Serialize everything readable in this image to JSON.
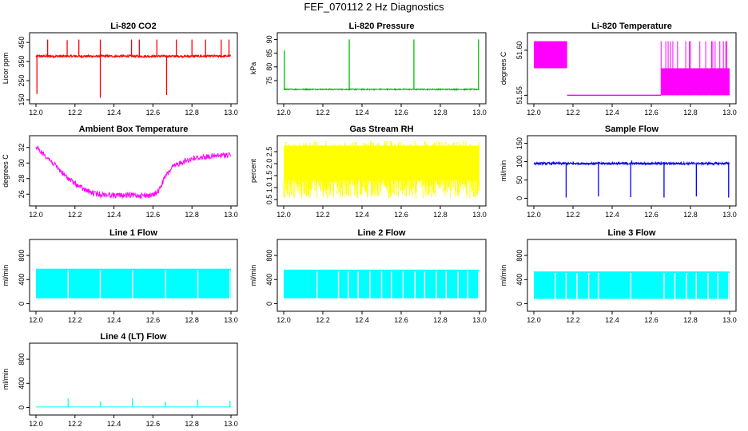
{
  "page": {
    "title": "FEF_070112  2 Hz Diagnostics"
  },
  "chart_data": [
    {
      "id": "co2",
      "type": "line",
      "title": "Li-820 CO2",
      "ylabel": "Licor ppm",
      "color": "#ff0000",
      "xlim": [
        12.0,
        13.0
      ],
      "ylim": [
        150,
        480
      ],
      "x_ticks": [
        "12.0",
        "12.2",
        "12.4",
        "12.6",
        "12.8",
        "13.0"
      ],
      "y_ticks": [
        150,
        250,
        350,
        450
      ],
      "series": [
        {
          "name": "CO2",
          "baseline": 378,
          "noise": 6,
          "spikes": [
            {
              "x": 12.005,
              "y": 180
            },
            {
              "x": 12.06,
              "y": 465
            },
            {
              "x": 12.16,
              "y": 462
            },
            {
              "x": 12.22,
              "y": 465
            },
            {
              "x": 12.33,
              "y": 160
            },
            {
              "x": 12.33,
              "y": 465
            },
            {
              "x": 12.49,
              "y": 465
            },
            {
              "x": 12.53,
              "y": 465
            },
            {
              "x": 12.62,
              "y": 465
            },
            {
              "x": 12.67,
              "y": 175
            },
            {
              "x": 12.72,
              "y": 465
            },
            {
              "x": 12.8,
              "y": 465
            },
            {
              "x": 12.87,
              "y": 465
            },
            {
              "x": 12.95,
              "y": 465
            },
            {
              "x": 12.99,
              "y": 465
            }
          ]
        }
      ]
    },
    {
      "id": "pressure",
      "type": "line",
      "title": "Li-820 Pressure",
      "ylabel": "kPa",
      "color": "#00c000",
      "xlim": [
        12.0,
        13.0
      ],
      "ylim": [
        68,
        91
      ],
      "x_ticks": [
        "12.0",
        "12.2",
        "12.4",
        "12.6",
        "12.8",
        "13.0"
      ],
      "y_ticks": [
        75,
        80,
        85,
        90
      ],
      "series": [
        {
          "name": "Pressure",
          "baseline": 71.8,
          "noise": 0.2,
          "spikes": [
            {
              "x": 12.003,
              "y": 86
            },
            {
              "x": 12.335,
              "y": 90
            },
            {
              "x": 12.665,
              "y": 90
            },
            {
              "x": 12.995,
              "y": 90
            }
          ]
        }
      ]
    },
    {
      "id": "temperature",
      "type": "line",
      "title": "Li-820 Temperature",
      "ylabel": "degrees C",
      "color": "#ff00ff",
      "xlim": [
        12.0,
        13.0
      ],
      "ylim": [
        51.545,
        51.615
      ],
      "x_ticks": [
        "12.0",
        "12.2",
        "12.4",
        "12.6",
        "12.8",
        "13.0"
      ],
      "y_ticks": [
        "51.55",
        "51.60"
      ],
      "series": [
        {
          "name": "Temperature",
          "segments": [
            {
              "x0": 12.0,
              "x1": 12.17,
              "levels": [
                51.58,
                51.61
              ],
              "note": "dense toggle"
            },
            {
              "x0": 12.17,
              "x1": 12.65,
              "levels": [
                51.55
              ]
            },
            {
              "x0": 12.65,
              "x1": 13.0,
              "levels": [
                51.55,
                51.58,
                51.61
              ],
              "note": "dense toggle"
            }
          ]
        }
      ]
    },
    {
      "id": "ambient",
      "type": "line",
      "title": "Ambient Box Temperature",
      "ylabel": "degrees C",
      "color": "#ff00ff",
      "xlim": [
        12.0,
        13.0
      ],
      "ylim": [
        25,
        33
      ],
      "x_ticks": [
        "12.0",
        "12.2",
        "12.4",
        "12.6",
        "12.8",
        "13.0"
      ],
      "y_ticks": [
        26,
        28,
        30,
        32
      ],
      "series": [
        {
          "name": "Ambient",
          "x": [
            12.0,
            12.05,
            12.1,
            12.15,
            12.2,
            12.25,
            12.3,
            12.4,
            12.5,
            12.6,
            12.63,
            12.66,
            12.7,
            12.75,
            12.8,
            12.85,
            12.9,
            12.95,
            13.0
          ],
          "y": [
            32.3,
            31.3,
            30.0,
            28.7,
            27.7,
            26.9,
            26.4,
            26.2,
            26.2,
            26.2,
            26.8,
            28.5,
            29.8,
            30.5,
            30.9,
            31.1,
            31.2,
            31.3,
            31.5
          ],
          "noise": 0.35
        }
      ]
    },
    {
      "id": "rh",
      "type": "line",
      "title": "Gas Stream RH",
      "ylabel": "percent",
      "color": "#ffff00",
      "xlim": [
        12.0,
        13.0
      ],
      "ylim": [
        0.4,
        3.0
      ],
      "x_ticks": [
        "12.0",
        "12.2",
        "12.4",
        "12.6",
        "12.8",
        "13.0"
      ],
      "y_ticks": [
        "0.5",
        "1.0",
        "1.5",
        "2.0",
        "2.5"
      ],
      "series": [
        {
          "name": "RH",
          "upper": 2.75,
          "lower": 0.55
        }
      ]
    },
    {
      "id": "sample_flow",
      "type": "line",
      "title": "Sample Flow",
      "ylabel": "ml/min",
      "color": "#0000ff",
      "xlim": [
        12.0,
        13.0
      ],
      "ylim": [
        -10,
        160
      ],
      "x_ticks": [
        "12.0",
        "12.2",
        "12.4",
        "12.6",
        "12.8",
        "13.0"
      ],
      "y_ticks": [
        0,
        50,
        100,
        150
      ],
      "series": [
        {
          "name": "Sample Flow",
          "baseline": 95,
          "noise": 3,
          "drops": [
            {
              "x": 12.165,
              "y": 2
            },
            {
              "x": 12.33,
              "y": 5
            },
            {
              "x": 12.495,
              "y": 3
            },
            {
              "x": 12.665,
              "y": 2
            },
            {
              "x": 12.83,
              "y": 5
            },
            {
              "x": 12.995,
              "y": 2
            }
          ],
          "bumps": [
            {
              "x": 12.1,
              "y": 100
            },
            {
              "x": 12.5,
              "y": 103
            },
            {
              "x": 12.65,
              "y": 100
            }
          ]
        }
      ]
    },
    {
      "id": "line1",
      "type": "line",
      "title": "Line 1 Flow",
      "ylabel": "ml/min",
      "color": "#00ffff",
      "xlim": [
        12.0,
        13.0
      ],
      "ylim": [
        -60,
        1000
      ],
      "x_ticks": [
        "12.0",
        "12.2",
        "12.4",
        "12.6",
        "12.8",
        "13.0"
      ],
      "y_ticks": [
        0,
        400,
        800
      ],
      "series": [
        {
          "name": "Line 1",
          "upper": 580,
          "lower": 90,
          "gaps": [
            12.165,
            12.33,
            12.495,
            12.665,
            12.83,
            12.995
          ]
        }
      ]
    },
    {
      "id": "line2",
      "type": "line",
      "title": "Line 2 Flow",
      "ylabel": "ml/min",
      "color": "#00ffff",
      "xlim": [
        12.0,
        13.0
      ],
      "ylim": [
        -60,
        1000
      ],
      "x_ticks": [
        "12.0",
        "12.2",
        "12.4",
        "12.6",
        "12.8",
        "13.0"
      ],
      "y_ticks": [
        0,
        400,
        800
      ],
      "series": [
        {
          "name": "Line 2",
          "upper": 565,
          "lower": 90,
          "gaps": [
            12.17,
            12.28,
            12.33,
            12.38,
            12.44,
            12.5,
            12.55,
            12.61,
            12.67,
            12.72,
            12.78,
            12.83,
            12.89,
            12.94,
            12.995
          ]
        }
      ]
    },
    {
      "id": "line3",
      "type": "line",
      "title": "Line 3 Flow",
      "ylabel": "ml/min",
      "color": "#00ffff",
      "xlim": [
        12.0,
        13.0
      ],
      "ylim": [
        -60,
        1000
      ],
      "x_ticks": [
        "12.0",
        "12.2",
        "12.4",
        "12.6",
        "12.8",
        "13.0"
      ],
      "y_ticks": [
        0,
        400,
        800
      ],
      "series": [
        {
          "name": "Line 3",
          "upper": 535,
          "lower": 80,
          "gaps": [
            12.11,
            12.165,
            12.22,
            12.28,
            12.33,
            12.495,
            12.665,
            12.72,
            12.78,
            12.83,
            12.89,
            12.94,
            12.995
          ]
        }
      ]
    },
    {
      "id": "line4",
      "type": "line",
      "title": "Line 4 (LT) Flow",
      "ylabel": "ml/min",
      "color": "#00ffff",
      "xlim": [
        12.0,
        13.0
      ],
      "ylim": [
        -60,
        1000
      ],
      "x_ticks": [
        "12.0",
        "12.2",
        "12.4",
        "12.6",
        "12.8",
        "13.0"
      ],
      "y_ticks": [
        0,
        400,
        800
      ],
      "series": [
        {
          "name": "Line 4",
          "baseline": 8,
          "spikes": [
            {
              "x": 12.165,
              "y": 150
            },
            {
              "x": 12.33,
              "y": 100
            },
            {
              "x": 12.495,
              "y": 150
            },
            {
              "x": 12.665,
              "y": 90
            },
            {
              "x": 12.83,
              "y": 130
            },
            {
              "x": 12.995,
              "y": 110
            }
          ]
        }
      ]
    }
  ]
}
